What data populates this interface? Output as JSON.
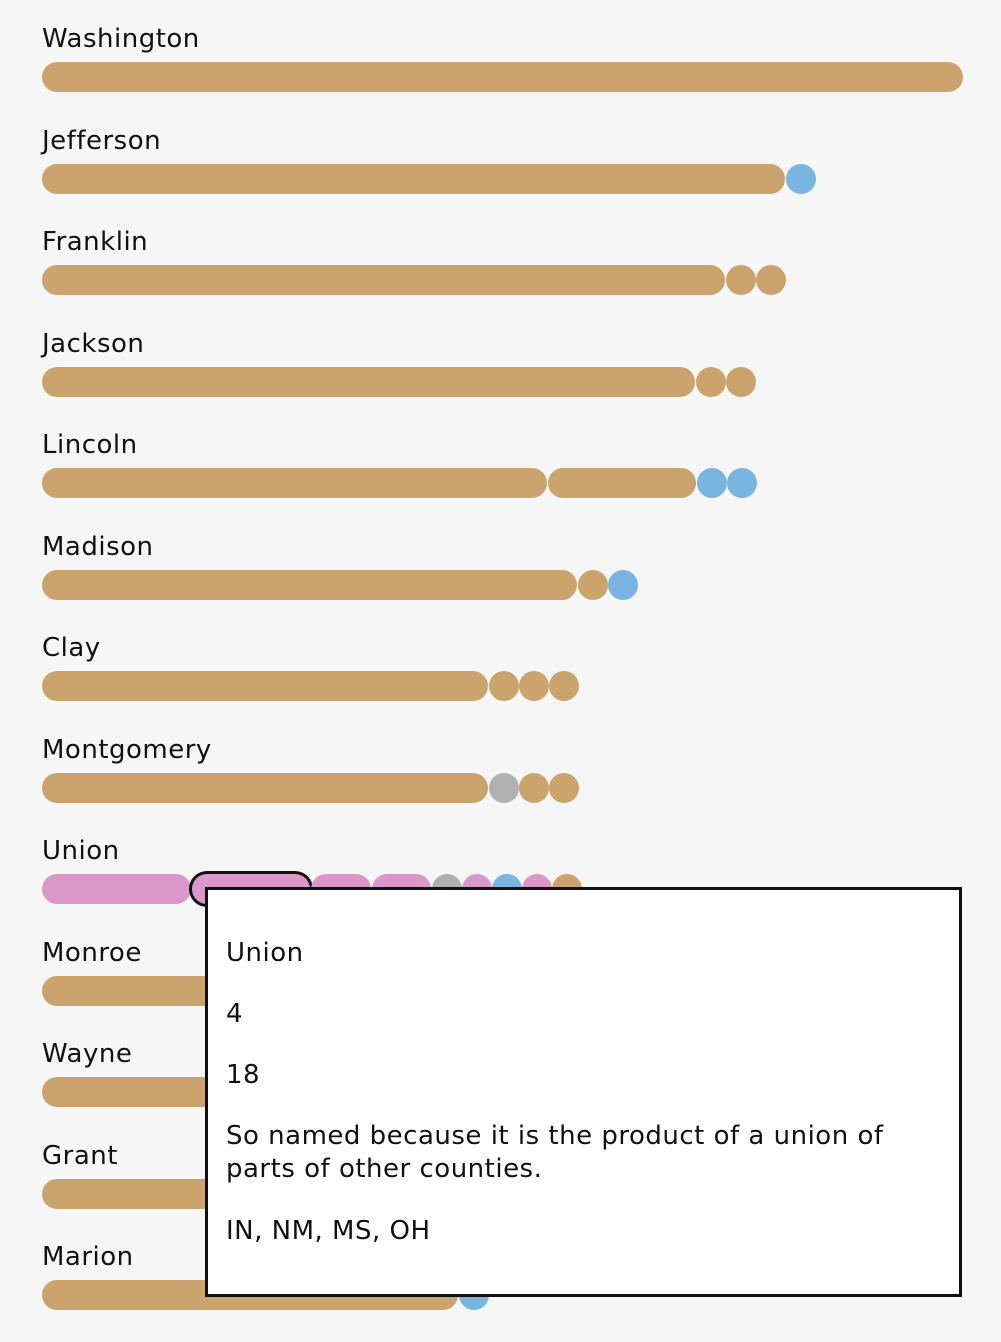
{
  "colors": {
    "tan": "#cba36d",
    "blue": "#7ab4e0",
    "gray": "#b0b0b0",
    "pink": "#dc97ca",
    "green": "#b8dfc6"
  },
  "chart_data": {
    "type": "bar",
    "unit_note": "Each long segment = one person's group of counties; each small dot = one county",
    "rows": [
      {
        "name": "Washington",
        "items": [
          {
            "kind": "seg",
            "value": 31,
            "color": "tan"
          }
        ]
      },
      {
        "name": "Jefferson",
        "items": [
          {
            "kind": "seg",
            "value": 25,
            "color": "tan"
          },
          {
            "kind": "dot",
            "color": "blue"
          }
        ]
      },
      {
        "name": "Franklin",
        "items": [
          {
            "kind": "seg",
            "value": 23,
            "color": "tan"
          },
          {
            "kind": "dot",
            "color": "tan"
          },
          {
            "kind": "dot",
            "color": "tan"
          }
        ]
      },
      {
        "name": "Jackson",
        "items": [
          {
            "kind": "seg",
            "value": 22,
            "color": "tan"
          },
          {
            "kind": "dot",
            "color": "tan"
          },
          {
            "kind": "dot",
            "color": "tan"
          }
        ]
      },
      {
        "name": "Lincoln",
        "items": [
          {
            "kind": "seg",
            "value": 17,
            "color": "tan"
          },
          {
            "kind": "seg",
            "value": 5,
            "color": "tan"
          },
          {
            "kind": "dot",
            "color": "blue"
          },
          {
            "kind": "dot",
            "color": "blue"
          }
        ]
      },
      {
        "name": "Madison",
        "items": [
          {
            "kind": "seg",
            "value": 18,
            "color": "tan"
          },
          {
            "kind": "dot",
            "color": "tan"
          },
          {
            "kind": "dot",
            "color": "blue"
          }
        ]
      },
      {
        "name": "Clay",
        "items": [
          {
            "kind": "seg",
            "value": 15,
            "color": "tan"
          },
          {
            "kind": "dot",
            "color": "tan"
          },
          {
            "kind": "dot",
            "color": "tan"
          },
          {
            "kind": "dot",
            "color": "tan"
          }
        ]
      },
      {
        "name": "Montgomery",
        "items": [
          {
            "kind": "seg",
            "value": 15,
            "color": "tan"
          },
          {
            "kind": "dot",
            "color": "gray"
          },
          {
            "kind": "dot",
            "color": "tan"
          },
          {
            "kind": "dot",
            "color": "tan"
          }
        ]
      },
      {
        "name": "Union",
        "items": [
          {
            "kind": "seg",
            "value": 5,
            "color": "pink"
          },
          {
            "kind": "seg",
            "value": 4,
            "color": "pink",
            "highlight": true
          },
          {
            "kind": "seg",
            "value": 2,
            "color": "pink"
          },
          {
            "kind": "seg",
            "value": 2,
            "color": "pink"
          },
          {
            "kind": "dot",
            "color": "gray"
          },
          {
            "kind": "dot",
            "color": "pink"
          },
          {
            "kind": "dot",
            "color": "blue"
          },
          {
            "kind": "dot",
            "color": "pink"
          },
          {
            "kind": "dot",
            "color": "tan"
          }
        ]
      },
      {
        "name": "Monroe",
        "items": [
          {
            "kind": "seg",
            "value": 17,
            "color": "tan"
          }
        ]
      },
      {
        "name": "Wayne",
        "items": [
          {
            "kind": "seg",
            "value": 15,
            "color": "tan"
          },
          {
            "kind": "dot",
            "color": "blue"
          }
        ]
      },
      {
        "name": "Grant",
        "items": [
          {
            "kind": "seg",
            "value": 12,
            "color": "tan"
          },
          {
            "kind": "dot",
            "color": "tan"
          },
          {
            "kind": "dot",
            "color": "tan"
          },
          {
            "kind": "dot",
            "color": "green"
          }
        ]
      },
      {
        "name": "Marion",
        "items": [
          {
            "kind": "seg",
            "value": 14,
            "color": "tan"
          },
          {
            "kind": "dot",
            "color": "blue"
          }
        ]
      }
    ]
  },
  "tooltip": {
    "name": "Union",
    "count": "4",
    "total": "18",
    "description": "So named because it is the product of a union of parts of other counties.",
    "states": "IN, NM, MS, OH"
  }
}
